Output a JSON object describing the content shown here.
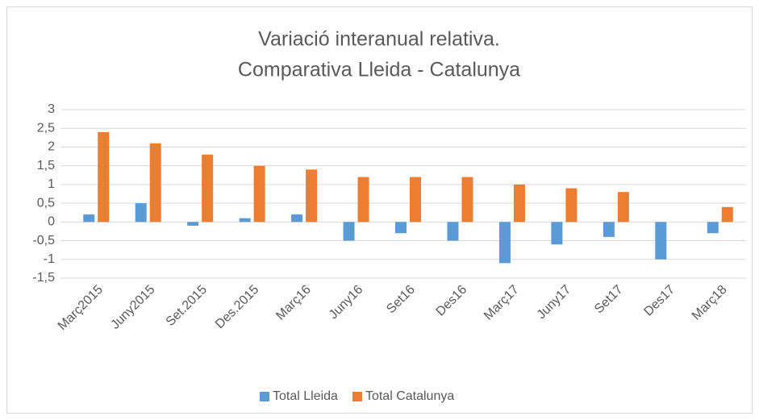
{
  "chart_data": {
    "type": "bar",
    "title": [
      "Variació interanual relativa.",
      "Comparativa Lleida - Catalunya"
    ],
    "categories": [
      "Març2015",
      "Juny2015",
      "Set.2015",
      "Des.2015",
      "Març16",
      "Juny16",
      "Set16",
      "Des16",
      "Març17",
      "Juny17",
      "Set17",
      "Des17",
      "Març18"
    ],
    "series": [
      {
        "name": "Total Lleida",
        "color": "#5b9bd5",
        "values": [
          0.2,
          0.5,
          -0.1,
          0.1,
          0.2,
          -0.5,
          -0.3,
          -0.5,
          -1.1,
          -0.6,
          -0.4,
          -1.0,
          -0.3
        ]
      },
      {
        "name": "Total Catalunya",
        "color": "#ed7d31",
        "values": [
          2.4,
          2.1,
          1.8,
          1.5,
          1.4,
          1.2,
          1.2,
          1.2,
          1.0,
          0.9,
          0.8,
          0,
          0.4
        ]
      }
    ],
    "ylim": [
      -1.5,
      3
    ],
    "yticks": [
      3,
      {
        "value": 2.5,
        "label": "2,5"
      },
      2,
      {
        "value": 1.5,
        "label": "1,5"
      },
      1,
      {
        "value": 0.5,
        "label": "0,5"
      },
      0,
      {
        "value": -0.5,
        "label": "-0,5"
      },
      -1,
      {
        "value": -1.5,
        "label": "-1,5"
      }
    ],
    "grid": true,
    "legend": "bottom"
  }
}
